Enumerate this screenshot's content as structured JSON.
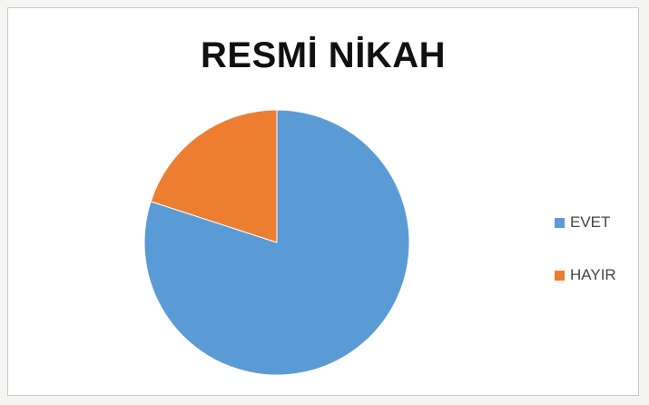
{
  "chart_data": {
    "type": "pie",
    "title": "RESMİ NİKAH",
    "categories": [
      "EVET",
      "HAYIR"
    ],
    "values": [
      80,
      20
    ],
    "colors": [
      "#5b9bd5",
      "#ed7d31"
    ],
    "legend_position": "right"
  }
}
